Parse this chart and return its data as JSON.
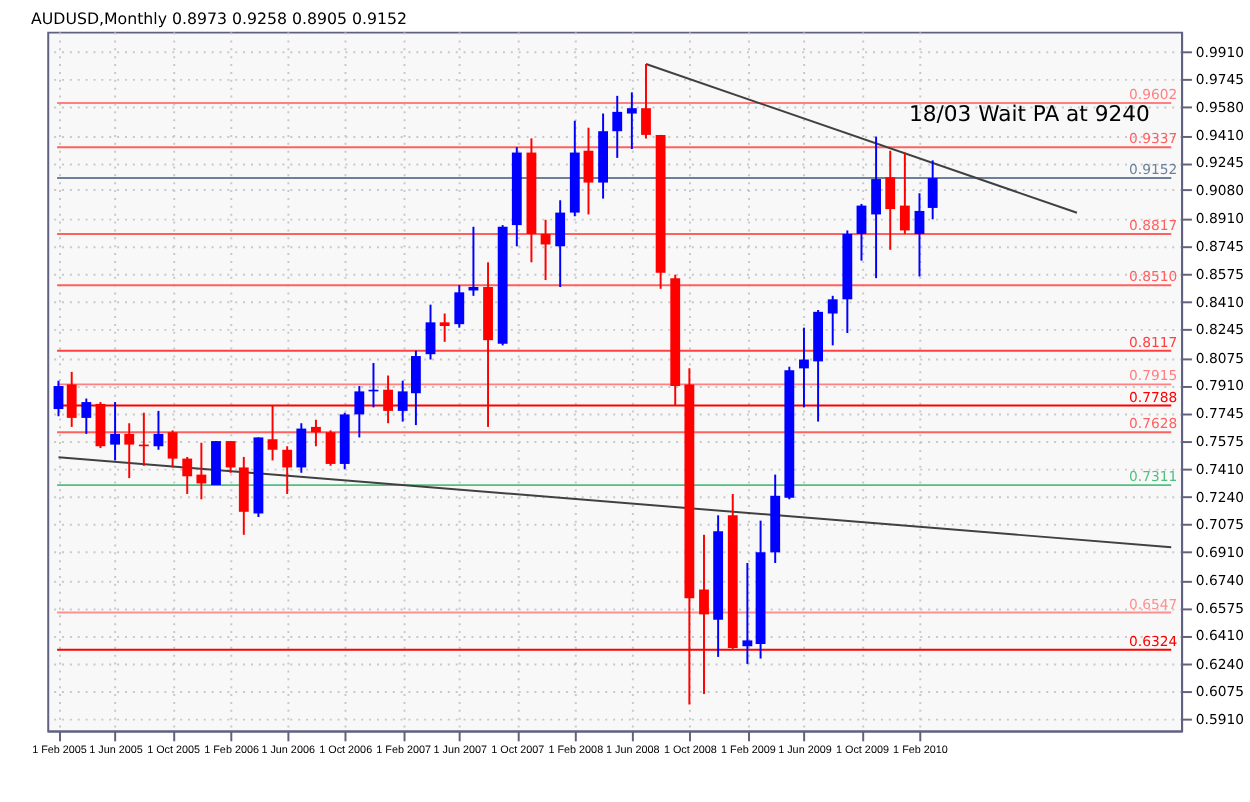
{
  "chart_data": {
    "type": "candlestick",
    "title": "AUDUSD,Monthly  0.8973 0.9258 0.8905 0.9152",
    "x": [
      "2005-02",
      "2005-03",
      "2005-04",
      "2005-05",
      "2005-06",
      "2005-07",
      "2005-08",
      "2005-09",
      "2005-10",
      "2005-11",
      "2005-12",
      "2006-01",
      "2006-02",
      "2006-03",
      "2006-04",
      "2006-05",
      "2006-06",
      "2006-07",
      "2006-08",
      "2006-09",
      "2006-10",
      "2006-11",
      "2006-12",
      "2007-01",
      "2007-02",
      "2007-03",
      "2007-04",
      "2007-05",
      "2007-06",
      "2007-07",
      "2007-08",
      "2007-09",
      "2007-10",
      "2007-11",
      "2007-12",
      "2008-01",
      "2008-02",
      "2008-03",
      "2008-04",
      "2008-05",
      "2008-06",
      "2008-07",
      "2008-08",
      "2008-09",
      "2008-10",
      "2008-11",
      "2008-12",
      "2009-01",
      "2009-02",
      "2009-03",
      "2009-04",
      "2009-05",
      "2009-06",
      "2009-07",
      "2009-08",
      "2009-09",
      "2009-10",
      "2009-11",
      "2009-12",
      "2010-01",
      "2010-02",
      "2010-03"
    ],
    "ohlc": [
      [
        0.7767,
        0.7937,
        0.7724,
        0.7905
      ],
      [
        0.7915,
        0.799,
        0.766,
        0.7714
      ],
      [
        0.7714,
        0.783,
        0.7618,
        0.7809
      ],
      [
        0.7798,
        0.7809,
        0.7533,
        0.7544
      ],
      [
        0.7554,
        0.7809,
        0.7459,
        0.7618
      ],
      [
        0.7618,
        0.7682,
        0.7353,
        0.7554
      ],
      [
        0.7554,
        0.7745,
        0.7427,
        0.7544
      ],
      [
        0.7544,
        0.7756,
        0.7523,
        0.7618
      ],
      [
        0.7628,
        0.7639,
        0.7417,
        0.747
      ],
      [
        0.747,
        0.748,
        0.7258,
        0.7364
      ],
      [
        0.7374,
        0.7565,
        0.7226,
        0.7321
      ],
      [
        0.7311,
        0.7575,
        0.7311,
        0.7575
      ],
      [
        0.7575,
        0.7575,
        0.7385,
        0.7417
      ],
      [
        0.7417,
        0.748,
        0.7013,
        0.7151
      ],
      [
        0.7141,
        0.7597,
        0.712,
        0.7597
      ],
      [
        0.7586,
        0.7788,
        0.7459,
        0.7523
      ],
      [
        0.7523,
        0.7544,
        0.7258,
        0.7417
      ],
      [
        0.7417,
        0.7682,
        0.7385,
        0.765
      ],
      [
        0.766,
        0.7703,
        0.7544,
        0.7628
      ],
      [
        0.7628,
        0.7639,
        0.7427,
        0.7438
      ],
      [
        0.7438,
        0.7745,
        0.7406,
        0.7735
      ],
      [
        0.7735,
        0.7905,
        0.7597,
        0.7873
      ],
      [
        0.7873,
        0.8043,
        0.7777,
        0.7883
      ],
      [
        0.7883,
        0.7968,
        0.7682,
        0.7756
      ],
      [
        0.7756,
        0.7937,
        0.7692,
        0.7873
      ],
      [
        0.7862,
        0.8117,
        0.7671,
        0.8085
      ],
      [
        0.8096,
        0.8393,
        0.8064,
        0.8287
      ],
      [
        0.8287,
        0.834,
        0.817,
        0.8265
      ],
      [
        0.8276,
        0.851,
        0.8255,
        0.8467
      ],
      [
        0.8478,
        0.886,
        0.8446,
        0.8499
      ],
      [
        0.8499,
        0.8647,
        0.766,
        0.818
      ],
      [
        0.8159,
        0.887,
        0.8149,
        0.886
      ],
      [
        0.887,
        0.9337,
        0.8743,
        0.9305
      ],
      [
        0.9305,
        0.939,
        0.8647,
        0.8817
      ],
      [
        0.8817,
        0.8902,
        0.8541,
        0.8754
      ],
      [
        0.8743,
        0.9019,
        0.8499,
        0.8945
      ],
      [
        0.8945,
        0.9496,
        0.8923,
        0.9305
      ],
      [
        0.9316,
        0.9454,
        0.8934,
        0.9125
      ],
      [
        0.9125,
        0.9539,
        0.9029,
        0.9433
      ],
      [
        0.9433,
        0.9645,
        0.9273,
        0.9549
      ],
      [
        0.9539,
        0.9666,
        0.9326,
        0.9571
      ],
      [
        0.9571,
        0.9836,
        0.939,
        0.9411
      ],
      [
        0.9411,
        0.9411,
        0.8488,
        0.8584
      ],
      [
        0.8552,
        0.8573,
        0.7788,
        0.7905
      ],
      [
        0.7915,
        0.8011,
        0.5995,
        0.6632
      ],
      [
        0.6685,
        0.7013,
        0.6058,
        0.6536
      ],
      [
        0.6504,
        0.713,
        0.6281,
        0.7035
      ],
      [
        0.713,
        0.7258,
        0.6324,
        0.6334
      ],
      [
        0.6345,
        0.6844,
        0.6239,
        0.638
      ],
      [
        0.6359,
        0.7098,
        0.6271,
        0.6908
      ],
      [
        0.6908,
        0.7374,
        0.6844,
        0.7247
      ],
      [
        0.7236,
        0.8021,
        0.7226,
        0.8
      ],
      [
        0.8011,
        0.8255,
        0.7777,
        0.8064
      ],
      [
        0.8053,
        0.8361,
        0.7692,
        0.835
      ],
      [
        0.834,
        0.8446,
        0.8149,
        0.8425
      ],
      [
        0.8425,
        0.8838,
        0.8223,
        0.8817
      ],
      [
        0.8817,
        0.8997,
        0.8657,
        0.8987
      ],
      [
        0.8934,
        0.9401,
        0.8552,
        0.9146
      ],
      [
        0.9157,
        0.9316,
        0.8722,
        0.8966
      ],
      [
        0.8987,
        0.9305,
        0.8817,
        0.8838
      ],
      [
        0.8817,
        0.9061,
        0.8562,
        0.8955
      ],
      [
        0.8973,
        0.9258,
        0.8905,
        0.9152
      ]
    ],
    "colors": [
      "#0000ff",
      "#ff0000",
      "#0000ff",
      "#ff0000",
      "#0000ff",
      "#ff0000",
      "#ff0000",
      "#0000ff",
      "#ff0000",
      "#ff0000",
      "#ff0000",
      "#0000ff",
      "#ff0000",
      "#ff0000",
      "#0000ff",
      "#ff0000",
      "#ff0000",
      "#0000ff",
      "#ff0000",
      "#ff0000",
      "#0000ff",
      "#0000ff",
      "#0000ff",
      "#ff0000",
      "#0000ff",
      "#0000ff",
      "#0000ff",
      "#ff0000",
      "#0000ff",
      "#0000ff",
      "#ff0000",
      "#0000ff",
      "#0000ff",
      "#ff0000",
      "#ff0000",
      "#0000ff",
      "#0000ff",
      "#ff0000",
      "#0000ff",
      "#0000ff",
      "#0000ff",
      "#ff0000",
      "#ff0000",
      "#ff0000",
      "#ff0000",
      "#ff0000",
      "#0000ff",
      "#ff0000",
      "#0000ff",
      "#0000ff",
      "#0000ff",
      "#0000ff",
      "#0000ff",
      "#0000ff",
      "#0000ff",
      "#0000ff",
      "#0000ff",
      "#0000ff",
      "#ff0000",
      "#ff0000",
      "#0000ff",
      "#0000ff"
    ],
    "series": [
      {
        "type": "line",
        "color": "#404040",
        "x": [
          "2008-07",
          "2011-01"
        ],
        "values": [
          0.9836,
          0.8944
        ]
      },
      {
        "type": "line",
        "color": "#404040",
        "x": [
          "2005-02",
          "2011-07-20"
        ],
        "values": [
          0.7478,
          0.6939
        ]
      }
    ],
    "ref_lines": [
      {
        "axis": "y",
        "value": 0.9602,
        "label": "0.9602",
        "color": "#ff8080"
      },
      {
        "axis": "y",
        "value": 0.9337,
        "label": "0.9337",
        "color": "#ff6060"
      },
      {
        "axis": "y",
        "value": 0.9152,
        "label": "0.9152",
        "color": "#6c8098"
      },
      {
        "axis": "y",
        "value": 0.8817,
        "label": "0.8817",
        "color": "#ff6060"
      },
      {
        "axis": "y",
        "value": 0.851,
        "label": "0.8510",
        "color": "#ff6060"
      },
      {
        "axis": "y",
        "value": 0.8117,
        "label": "0.8117",
        "color": "#ff4040"
      },
      {
        "axis": "y",
        "value": 0.7915,
        "label": "0.7915",
        "color": "#ff8080"
      },
      {
        "axis": "y",
        "value": 0.7788,
        "label": "0.7788",
        "color": "#ff0000"
      },
      {
        "axis": "y",
        "value": 0.7628,
        "label": "0.7628",
        "color": "#ff6060"
      },
      {
        "axis": "y",
        "value": 0.7311,
        "label": "0.7311",
        "color": "#50c080"
      },
      {
        "axis": "y",
        "value": 0.6547,
        "label": "0.6547",
        "color": "#ff9090"
      },
      {
        "axis": "y",
        "value": 0.6324,
        "label": "0.6324",
        "color": "#ff0000"
      }
    ],
    "annotations": [
      "18/03  Wait PA at 9240"
    ],
    "xlim": [
      "2005-01-29",
      "2011-07-20"
    ],
    "ylim": [
      0.584,
      1.003
    ],
    "xticks": [
      {
        "value": "2005-02",
        "label": "1 Feb 2005"
      },
      {
        "value": "2005-06",
        "label": "1 Jun 2005"
      },
      {
        "value": "2005-10",
        "label": "1 Oct 2005"
      },
      {
        "value": "2006-02",
        "label": "1 Feb 2006"
      },
      {
        "value": "2006-06",
        "label": "1 Jun 2006"
      },
      {
        "value": "2006-10",
        "label": "1 Oct 2006"
      },
      {
        "value": "2007-02",
        "label": "1 Feb 2007"
      },
      {
        "value": "2007-06",
        "label": "1 Jun 2007"
      },
      {
        "value": "2007-10",
        "label": "1 Oct 2007"
      },
      {
        "value": "2008-02",
        "label": "1 Feb 2008"
      },
      {
        "value": "2008-06",
        "label": "1 Jun 2008"
      },
      {
        "value": "2008-10",
        "label": "1 Oct 2008"
      },
      {
        "value": "2009-02",
        "label": "1 Feb 2009"
      },
      {
        "value": "2009-06",
        "label": "1 Jun 2009"
      },
      {
        "value": "2009-10",
        "label": "1 Oct 2009"
      },
      {
        "value": "2010-02",
        "label": "1 Feb 2010"
      }
    ],
    "yticks": [
      {
        "value": 0.591,
        "label": "0.5910"
      },
      0.6075,
      {
        "value": 0.624,
        "label": "0.6240"
      },
      {
        "value": 0.641,
        "label": "0.6410"
      },
      0.6575,
      {
        "value": 0.674,
        "label": "0.6740"
      },
      {
        "value": 0.691,
        "label": "0.6910"
      },
      0.7075,
      {
        "value": 0.724,
        "label": "0.7240"
      },
      {
        "value": 0.741,
        "label": "0.7410"
      },
      0.7575,
      0.7745,
      {
        "value": 0.791,
        "label": "0.7910"
      },
      0.8075,
      0.8245,
      {
        "value": 0.841,
        "label": "0.8410"
      },
      0.8575,
      0.8745,
      {
        "value": 0.891,
        "label": "0.8910"
      },
      {
        "value": 0.908,
        "label": "0.9080"
      },
      0.9245,
      {
        "value": 0.941,
        "label": "0.9410"
      },
      {
        "value": 0.958,
        "label": "0.9580"
      },
      0.9745,
      {
        "value": 0.991,
        "label": "0.9910"
      }
    ],
    "grid": true
  }
}
